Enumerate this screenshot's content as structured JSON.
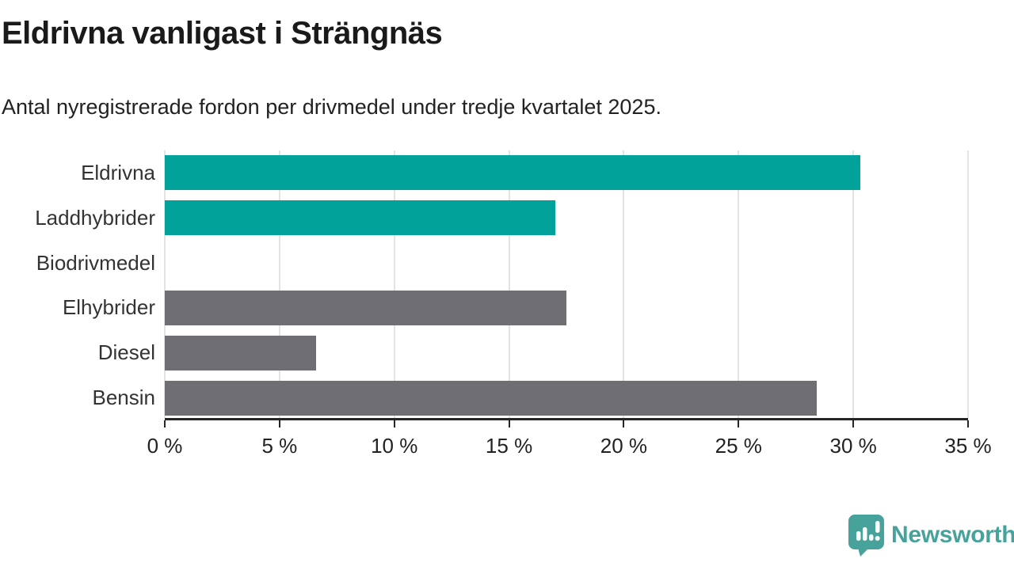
{
  "header": {
    "title": "Eldrivna vanligast i Strängnäs",
    "subtitle": "Antal nyregistrerade fordon per drivmedel under tredje kvartalet 2025."
  },
  "colors": {
    "accent_teal": "#00a29a",
    "muted_gray": "#6e6e73",
    "gridline": "#e3e3e3",
    "axis": "#262626",
    "brand_teal": "#46a29b"
  },
  "chart_data": {
    "type": "bar",
    "orientation": "horizontal",
    "title": "Eldrivna vanligast i Strängnäs",
    "subtitle": "Antal nyregistrerade fordon per drivmedel under tredje kvartalet 2025.",
    "categories": [
      "Eldrivna",
      "Laddhybrider",
      "Biodrivmedel",
      "Elhybrider",
      "Diesel",
      "Bensin"
    ],
    "values": [
      30.3,
      17.0,
      0,
      17.5,
      6.6,
      28.4
    ],
    "bar_colors": [
      "#00a29a",
      "#00a29a",
      "#00a29a",
      "#6e6e73",
      "#6e6e73",
      "#6e6e73"
    ],
    "xlabel": "",
    "ylabel": "",
    "xlim": [
      0,
      35
    ],
    "x_ticks": [
      0,
      5,
      10,
      15,
      20,
      25,
      30,
      35
    ],
    "x_tick_labels": [
      "0 %",
      "5 %",
      "10 %",
      "15 %",
      "20 %",
      "25 %",
      "30 %",
      "35 %"
    ],
    "grid": true,
    "legend": "none"
  },
  "footer": {
    "brand_name": "Newsworthy",
    "brand_icon": "bar-chart-speech-bubble-icon"
  }
}
